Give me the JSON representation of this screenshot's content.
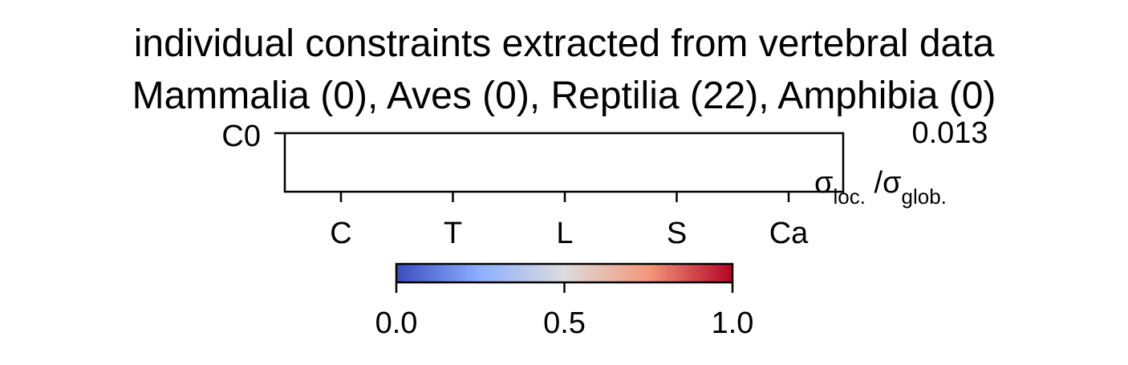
{
  "chart_data": {
    "type": "heatmap",
    "title": "individual constraints extracted from vertebral data",
    "subtitle": "Mammalia (0), Aves (0), Reptilia (22), Amphibia (0)",
    "rows": [
      "C0"
    ],
    "columns": [
      "C",
      "T",
      "L",
      "S",
      "Ca"
    ],
    "values": [
      [
        null,
        null,
        null,
        null,
        null
      ]
    ],
    "row_annotation": "0.013",
    "ratio_label": {
      "numerator": "σ",
      "numerator_sub": "loc.",
      "separator": " /",
      "denominator": "σ",
      "denominator_sub": "glob."
    },
    "colorbar": {
      "colormap": "coolwarm",
      "vmin": 0.0,
      "vmax": 1.0,
      "ticks": [
        "0.0",
        "0.5",
        "1.0"
      ],
      "colors": [
        "#3b4cc0",
        "#8db0fe",
        "#dddcdc",
        "#f4987a",
        "#b40426"
      ]
    },
    "grid": false
  }
}
